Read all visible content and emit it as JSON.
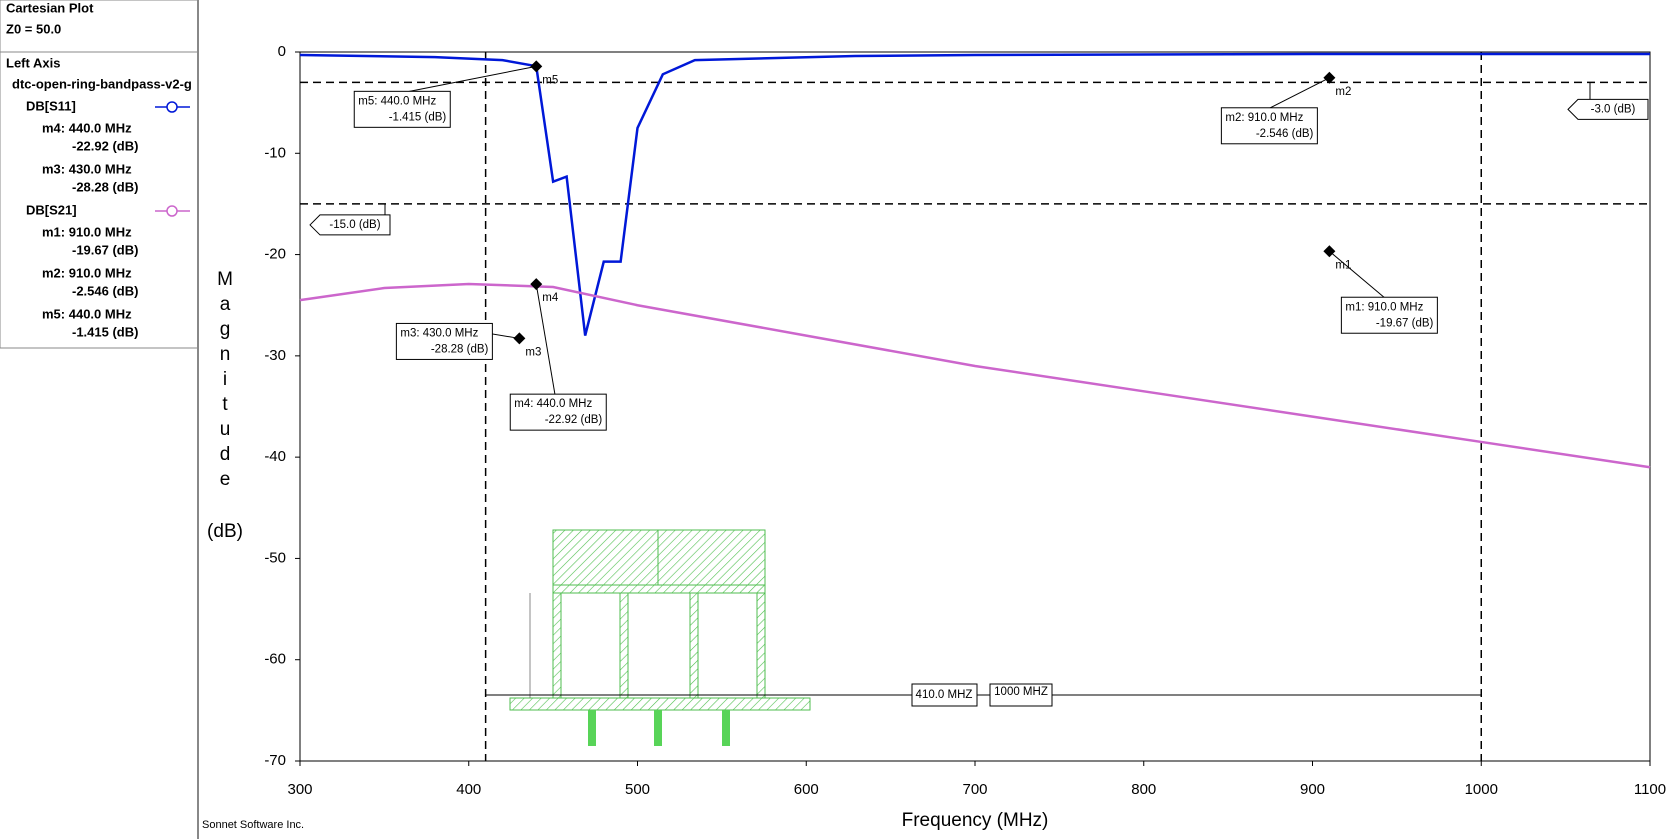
{
  "sidebar": {
    "title": "Cartesian Plot",
    "z0": "Z0 = 50.0",
    "axis_heading": "Left Axis",
    "project": "dtc-open-ring-bandpass-v2-g"
  },
  "footer": "Sonnet Software Inc.",
  "chart_data": {
    "type": "line",
    "xlabel": "Frequency (MHz)",
    "ylabel": "Magnitude",
    "yunit": "(dB)",
    "xlim": [
      300,
      1100
    ],
    "ylim": [
      -70,
      0
    ],
    "xticks": [
      300,
      400,
      500,
      600,
      700,
      800,
      900,
      1000,
      1100
    ],
    "yticks": [
      0,
      -10,
      -20,
      -30,
      -40,
      -50,
      -60,
      -70
    ],
    "grid": false,
    "series": [
      {
        "name": "DB[S11]",
        "color": "#0018d8",
        "x": [
          300,
          380,
          420,
          440,
          450,
          458,
          469,
          480,
          490,
          500,
          515,
          534,
          629,
          700,
          900,
          1100
        ],
        "values": [
          -0.3,
          -0.5,
          -0.8,
          -1.4,
          -12.8,
          -12.3,
          -28,
          -20.7,
          -20.7,
          -7.5,
          -2.2,
          -0.8,
          -0.4,
          -0.3,
          -0.2,
          -0.2
        ],
        "markers": [
          {
            "name": "m4",
            "x": 440,
            "value": -22.92,
            "freq_label": "m4: 440.0 MHz",
            "value_label": "-22.92  (dB)"
          },
          {
            "name": "m3",
            "x": 430,
            "value": -28.28,
            "freq_label": "m3: 430.0 MHz",
            "value_label": "-28.28  (dB)"
          }
        ]
      },
      {
        "name": "DB[S21]",
        "color": "#cc66cc",
        "x": [
          300,
          350,
          400,
          450,
          500,
          600,
          700,
          800,
          900,
          1000,
          1100
        ],
        "values": [
          -24.5,
          -23.3,
          -22.9,
          -23.2,
          -25,
          -28,
          -31,
          -33.5,
          -36,
          -38.5,
          -41
        ],
        "markers": [
          {
            "name": "m1",
            "x": 910,
            "value": -19.67,
            "freq_label": "m1: 910.0 MHz",
            "value_label": "-19.67  (dB)"
          },
          {
            "name": "m2",
            "x": 910,
            "value": -2.546,
            "freq_label": "m2: 910.0 MHz",
            "value_label": "-2.546  (dB)"
          },
          {
            "name": "m5",
            "x": 440,
            "value": -1.415,
            "freq_label": "m5: 440.0 MHz",
            "value_label": "-1.415  (dB)"
          }
        ]
      }
    ],
    "hlines": [
      {
        "value": -3,
        "label": "-3.0  (dB)"
      },
      {
        "value": -15,
        "label": "-15.0  (dB)"
      }
    ],
    "vlines": [
      {
        "value": 410,
        "label": "410.0 MHZ"
      },
      {
        "value": 1000,
        "label": "1000 MHZ"
      }
    ]
  }
}
